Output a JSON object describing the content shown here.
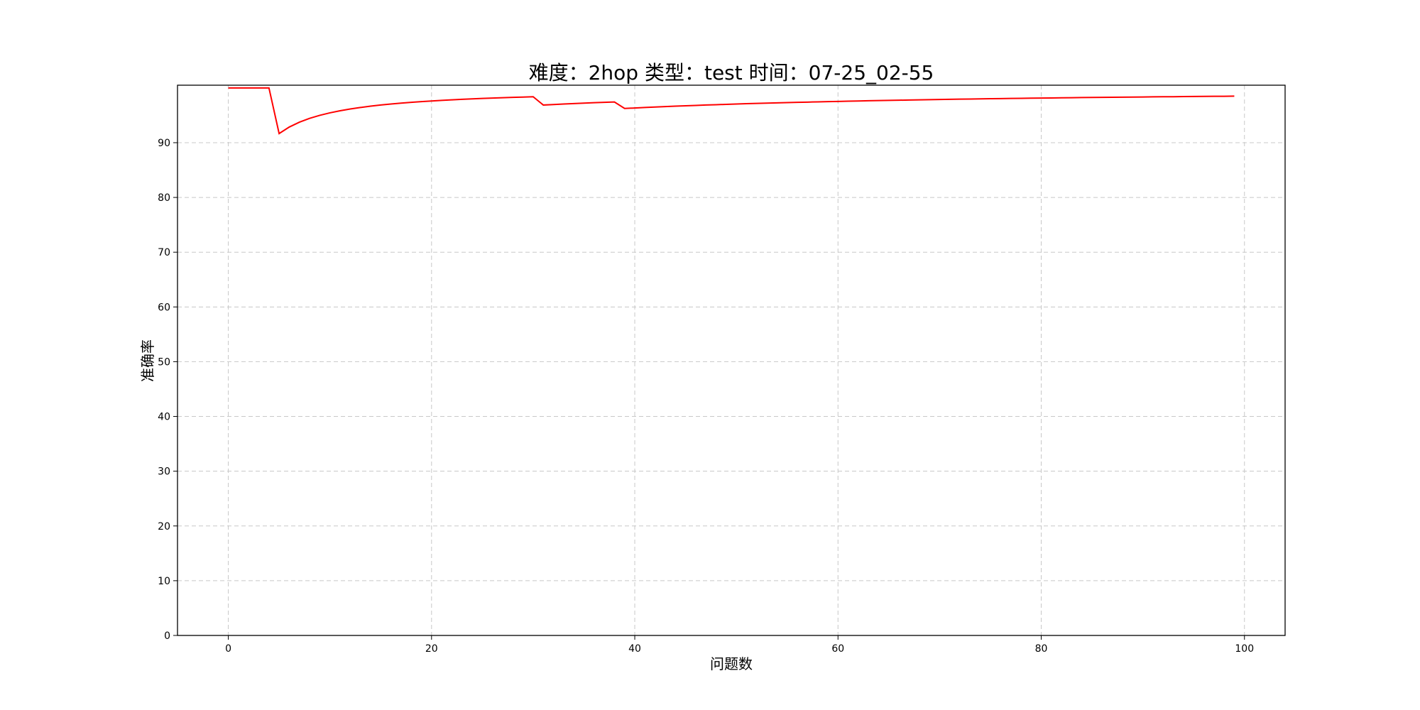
{
  "chart_data": {
    "type": "line",
    "title": "难度：2hop 类型：test 时间：07-25_02-55",
    "xlabel": "问题数",
    "ylabel": "准确率",
    "xlim": [
      -5,
      104
    ],
    "ylim": [
      0,
      100.5
    ],
    "x_ticks": [
      0,
      20,
      40,
      60,
      80,
      100
    ],
    "y_ticks": [
      0,
      10,
      20,
      30,
      40,
      50,
      60,
      70,
      80,
      90
    ],
    "grid": true,
    "series": [
      {
        "color": "#ff0000",
        "x": [
          0,
          1,
          2,
          3,
          4,
          5,
          6,
          7,
          8,
          9,
          10,
          11,
          12,
          13,
          14,
          15,
          16,
          17,
          18,
          19,
          20,
          21,
          22,
          23,
          24,
          25,
          26,
          27,
          28,
          29,
          30,
          31,
          32,
          33,
          34,
          35,
          36,
          37,
          38,
          39,
          40,
          41,
          42,
          43,
          44,
          45,
          46,
          47,
          48,
          49,
          50,
          51,
          52,
          53,
          54,
          55,
          56,
          57,
          58,
          59,
          60,
          61,
          62,
          63,
          64,
          65,
          66,
          67,
          68,
          69,
          70,
          71,
          72,
          73,
          74,
          75,
          76,
          77,
          78,
          79,
          80,
          81,
          82,
          83,
          84,
          85,
          86,
          87,
          88,
          89,
          90,
          91,
          92,
          93,
          94,
          95,
          96,
          97,
          98,
          99
        ],
        "y": [
          100,
          100,
          100,
          100,
          100,
          91.67,
          92.86,
          93.75,
          94.44,
          95.0,
          95.45,
          95.83,
          96.15,
          96.43,
          96.67,
          96.88,
          97.06,
          97.22,
          97.37,
          97.5,
          97.62,
          97.73,
          97.83,
          97.92,
          98.0,
          98.08,
          98.15,
          98.21,
          98.28,
          98.33,
          98.39,
          96.88,
          96.97,
          97.06,
          97.14,
          97.22,
          97.3,
          97.37,
          97.44,
          96.25,
          96.34,
          96.43,
          96.51,
          96.59,
          96.67,
          96.74,
          96.81,
          96.88,
          96.94,
          97.0,
          97.06,
          97.12,
          97.17,
          97.22,
          97.27,
          97.32,
          97.37,
          97.41,
          97.46,
          97.5,
          97.54,
          97.58,
          97.62,
          97.66,
          97.69,
          97.73,
          97.76,
          97.79,
          97.83,
          97.86,
          97.89,
          97.92,
          97.95,
          97.97,
          98.0,
          98.03,
          98.05,
          98.08,
          98.1,
          98.13,
          98.15,
          98.17,
          98.19,
          98.21,
          98.24,
          98.26,
          98.28,
          98.3,
          98.31,
          98.33,
          98.35,
          98.37,
          98.39,
          98.4,
          98.42,
          98.44,
          98.45,
          98.47,
          98.48,
          98.5
        ]
      }
    ]
  }
}
